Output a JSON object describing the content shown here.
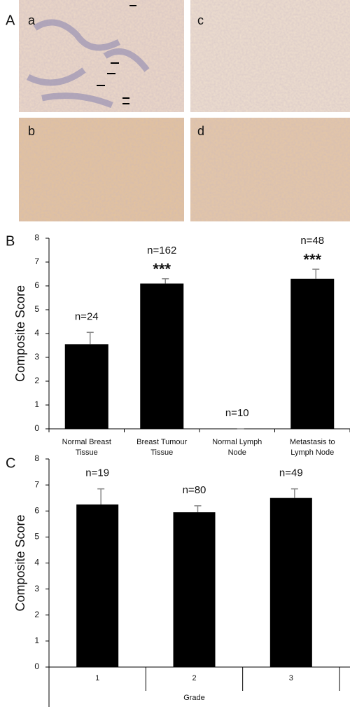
{
  "panel_a": {
    "label": "A",
    "images": [
      "a",
      "b",
      "c",
      "d"
    ]
  },
  "chart_data": [
    {
      "type": "bar",
      "panel": "B",
      "ylabel": "Composite Score",
      "categories": [
        "Normal Breast Tissue",
        "Breast Tumour Tissue",
        "Normal Lymph Node",
        "Metastasis to Lymph Node"
      ],
      "values": [
        3.55,
        6.1,
        0,
        6.3
      ],
      "errors": [
        0.5,
        0.2,
        0,
        0.4
      ],
      "annotations": [
        "n=24",
        "n=162",
        "n=10",
        "n=48"
      ],
      "significance": [
        null,
        "***",
        null,
        "***"
      ],
      "ylim": [
        0,
        8
      ],
      "yticks": [
        0,
        1,
        2,
        3,
        4,
        5,
        6,
        7,
        8
      ],
      "color": "#000000"
    },
    {
      "type": "bar",
      "panel": "C",
      "ylabel": "Composite Score",
      "xlabel": "Grade",
      "categories": [
        "1",
        "2",
        "3"
      ],
      "values": [
        6.25,
        5.95,
        6.5
      ],
      "errors": [
        0.6,
        0.25,
        0.35
      ],
      "annotations": [
        "n=19",
        "n=80",
        "n=49"
      ],
      "ylim": [
        0,
        8
      ],
      "yticks": [
        0,
        1,
        2,
        3,
        4,
        5,
        6,
        7,
        8
      ],
      "color": "#000000"
    }
  ]
}
